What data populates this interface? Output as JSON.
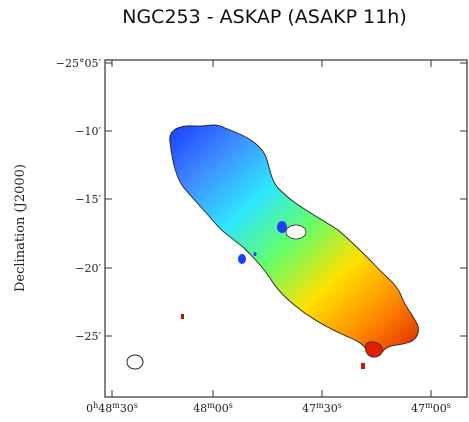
{
  "title": "NGC253 - ASKAP (ASAKP 11h)",
  "chart_data": {
    "type": "heatmap",
    "title": "NGC253 - ASKAP (ASAKP 11h)",
    "ylabel": "Declination  (J2000)",
    "xlabel": "",
    "x_tick_labels": [
      {
        "main": "0",
        "sup1": "h",
        "mid": "48",
        "sup2": "m",
        "end": "30",
        "sup3": "s"
      },
      {
        "main": "",
        "sup1": "",
        "mid": "48",
        "sup2": "m",
        "end": "00",
        "sup3": "s"
      },
      {
        "main": "",
        "sup1": "",
        "mid": "47",
        "sup2": "m",
        "end": "30",
        "sup3": "s"
      },
      {
        "main": "",
        "sup1": "",
        "mid": "47",
        "sup2": "m",
        "end": "00",
        "sup3": "s"
      }
    ],
    "y_tick_labels": [
      "−25°05′",
      "−10′",
      "−15′",
      "−20′",
      "−25′"
    ],
    "colormap": [
      "#1a3cff",
      "#3f8cff",
      "#2ee6ff",
      "#66ff66",
      "#ffe000",
      "#ff8a00",
      "#e02000"
    ],
    "gradient_direction": "northeast-to-southwest (blue to red)",
    "grid": false
  }
}
